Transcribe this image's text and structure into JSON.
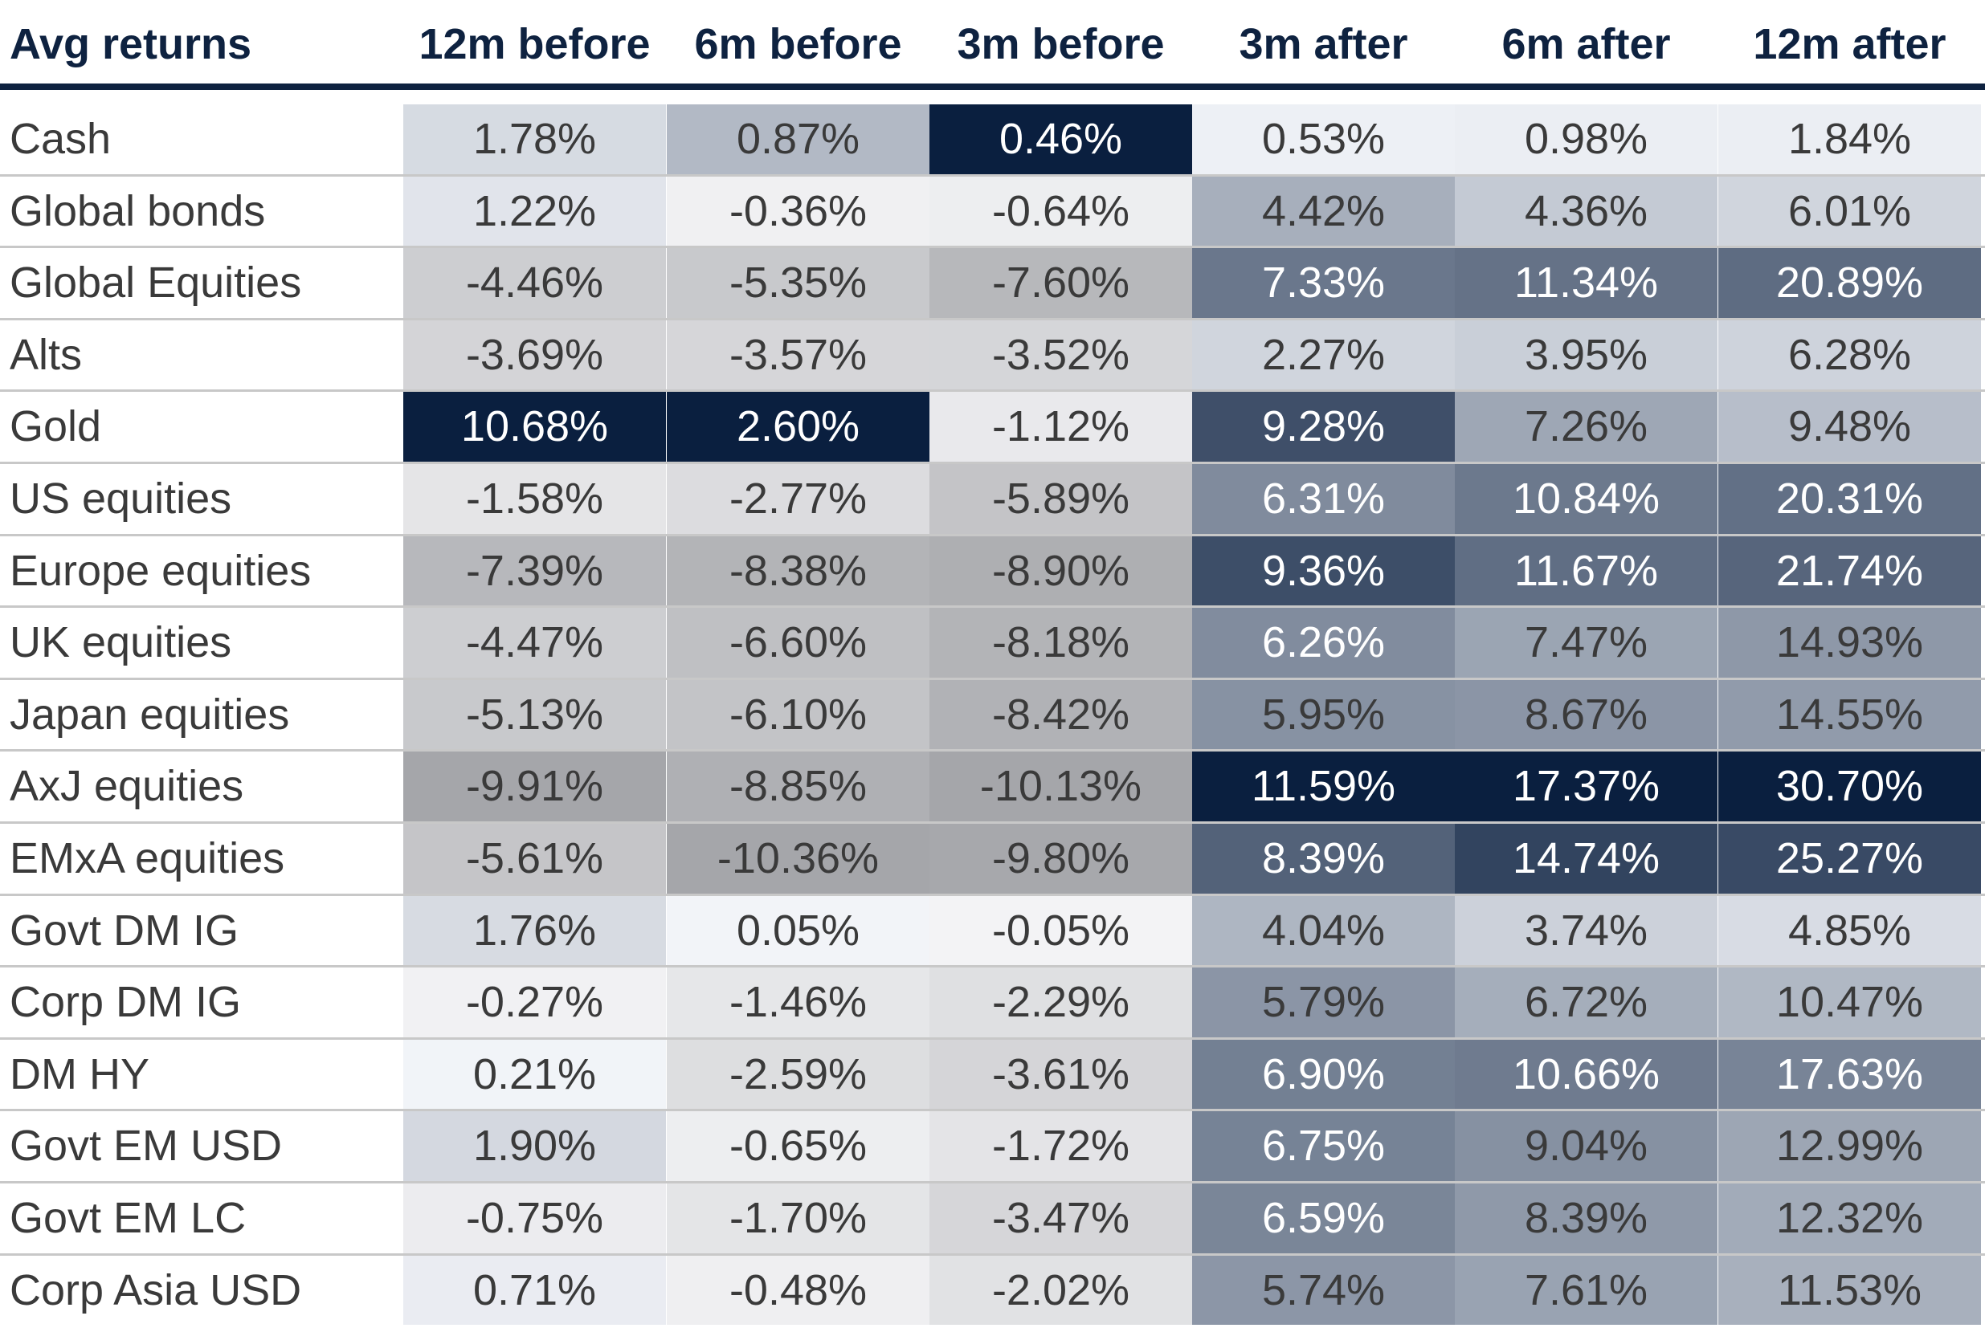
{
  "chart_data": {
    "type": "heatmap",
    "corner_label": "Avg returns",
    "columns": [
      "12m before",
      "6m before",
      "3m before",
      "3m after",
      "6m after",
      "12m after"
    ],
    "rows": [
      {
        "label": "Cash",
        "values": [
          "1.78%",
          "0.87%",
          "0.46%",
          "0.53%",
          "0.98%",
          "1.84%"
        ]
      },
      {
        "label": "Global bonds",
        "values": [
          "1.22%",
          "-0.36%",
          "-0.64%",
          "4.42%",
          "4.36%",
          "6.01%"
        ]
      },
      {
        "label": "Global Equities",
        "values": [
          "-4.46%",
          "-5.35%",
          "-7.60%",
          "7.33%",
          "11.34%",
          "20.89%"
        ]
      },
      {
        "label": "Alts",
        "values": [
          "-3.69%",
          "-3.57%",
          "-3.52%",
          "2.27%",
          "3.95%",
          "6.28%"
        ]
      },
      {
        "label": "Gold",
        "values": [
          "10.68%",
          "2.60%",
          "-1.12%",
          "9.28%",
          "7.26%",
          "9.48%"
        ]
      },
      {
        "label": "US equities",
        "values": [
          "-1.58%",
          "-2.77%",
          "-5.89%",
          "6.31%",
          "10.84%",
          "20.31%"
        ]
      },
      {
        "label": "Europe equities",
        "values": [
          "-7.39%",
          "-8.38%",
          "-8.90%",
          "9.36%",
          "11.67%",
          "21.74%"
        ]
      },
      {
        "label": "UK equities",
        "values": [
          "-4.47%",
          "-6.60%",
          "-8.18%",
          "6.26%",
          "7.47%",
          "14.93%"
        ]
      },
      {
        "label": "Japan equities",
        "values": [
          "-5.13%",
          "-6.10%",
          "-8.42%",
          "5.95%",
          "8.67%",
          "14.55%"
        ]
      },
      {
        "label": "AxJ equities",
        "values": [
          "-9.91%",
          "-8.85%",
          "-10.13%",
          "11.59%",
          "17.37%",
          "30.70%"
        ]
      },
      {
        "label": "EMxA equities",
        "values": [
          "-5.61%",
          "-10.36%",
          "-9.80%",
          "8.39%",
          "14.74%",
          "25.27%"
        ]
      },
      {
        "label": "Govt DM IG",
        "values": [
          "1.76%",
          "0.05%",
          "-0.05%",
          "4.04%",
          "3.74%",
          "4.85%"
        ]
      },
      {
        "label": "Corp DM IG",
        "values": [
          "-0.27%",
          "-1.46%",
          "-2.29%",
          "5.79%",
          "6.72%",
          "10.47%"
        ]
      },
      {
        "label": "DM HY",
        "values": [
          "0.21%",
          "-2.59%",
          "-3.61%",
          "6.90%",
          "10.66%",
          "17.63%"
        ]
      },
      {
        "label": "Govt EM USD",
        "values": [
          "1.90%",
          "-0.65%",
          "-1.72%",
          "6.75%",
          "9.04%",
          "12.99%"
        ]
      },
      {
        "label": "Govt EM LC",
        "values": [
          "-0.75%",
          "-1.70%",
          "-3.47%",
          "6.59%",
          "8.39%",
          "12.32%"
        ]
      },
      {
        "label": "Corp Asia USD",
        "values": [
          "0.71%",
          "-0.48%",
          "-2.02%",
          "5.74%",
          "7.61%",
          "11.53%"
        ]
      }
    ],
    "colors": {
      "header_text": "#0e2240",
      "row_label_text": "#3a3a3a",
      "negative_scale": [
        "#f4f4f6",
        "#a5a6aa"
      ],
      "positive_scale": [
        "#f4f6fa",
        "#0a1f3f"
      ],
      "row_separator": "#c8c8c8"
    }
  }
}
